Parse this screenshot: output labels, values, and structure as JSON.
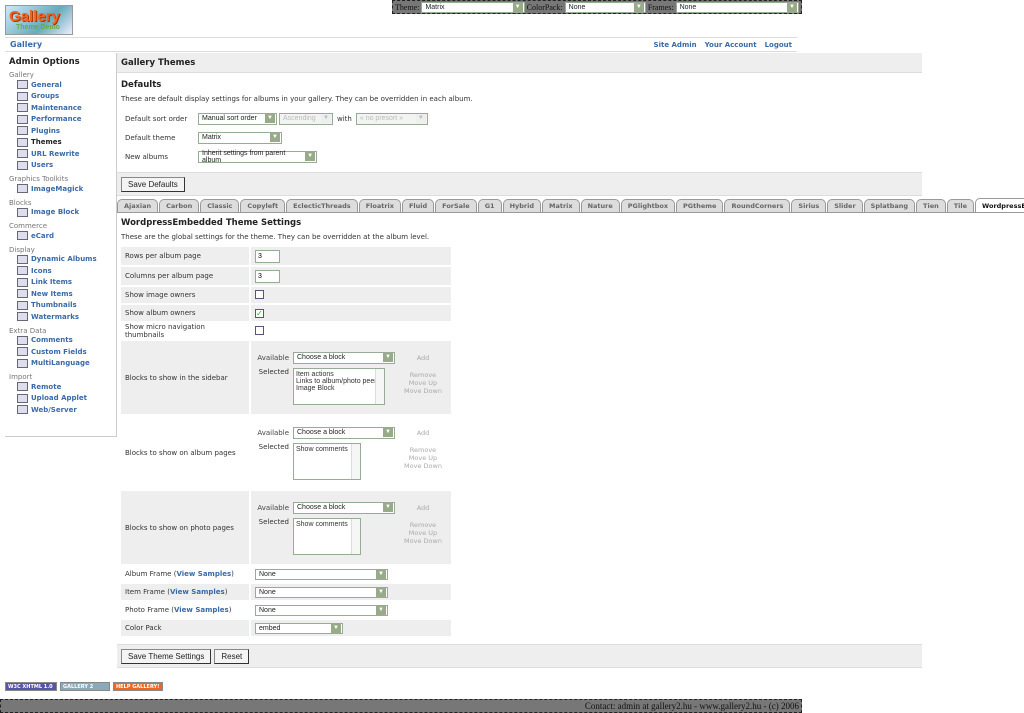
{
  "topbar": {
    "theme_label": "Theme:",
    "theme_value": "Matrix",
    "colorpack_label": "ColorPack:",
    "colorpack_value": "None",
    "frames_label": "Frames:",
    "frames_value": "None"
  },
  "logo": {
    "text": "Gallery",
    "sub": "Theme Demo"
  },
  "nav": {
    "breadcrumb": "Gallery",
    "links": [
      "Site Admin",
      "Your Account",
      "Logout"
    ]
  },
  "sidebar": {
    "title": "Admin Options",
    "groups": [
      {
        "name": "Gallery",
        "items": [
          "General",
          "Groups",
          "Maintenance",
          "Performance",
          "Plugins",
          "Themes",
          "URL Rewrite",
          "Users"
        ]
      },
      {
        "name": "Graphics Toolkits",
        "items": [
          "ImageMagick"
        ]
      },
      {
        "name": "Blocks",
        "items": [
          "Image Block"
        ]
      },
      {
        "name": "Commerce",
        "items": [
          "eCard"
        ]
      },
      {
        "name": "Display",
        "items": [
          "Dynamic Albums",
          "Icons",
          "Link Items",
          "New Items",
          "Thumbnails",
          "Watermarks"
        ]
      },
      {
        "name": "Extra Data",
        "items": [
          "Comments",
          "Custom Fields",
          "MultiLanguage"
        ]
      },
      {
        "name": "Import",
        "items": [
          "Remote",
          "Upload Applet",
          "Web/Server"
        ]
      }
    ],
    "current": "Themes"
  },
  "main": {
    "title": "Gallery Themes",
    "defaults": {
      "heading": "Defaults",
      "description": "These are default display settings for albums in your gallery. They can be overridden in each album.",
      "sort_label": "Default sort order",
      "sort_value": "Manual sort order",
      "direction_value": "Ascending",
      "with_label": "with",
      "presort_value": "« no presort »",
      "theme_label": "Default theme",
      "theme_value": "Matrix",
      "new_albums_label": "New albums",
      "new_albums_value": "Inherit settings from parent album",
      "save_label": "Save Defaults"
    },
    "tabs": [
      "Ajaxian",
      "Carbon",
      "Classic",
      "Copyleft",
      "EclecticThreads",
      "Floatrix",
      "Fluid",
      "ForSale",
      "G1",
      "Hybrid",
      "Matrix",
      "Nature",
      "PGlightbox",
      "PGtheme",
      "RoundCorners",
      "Sirius",
      "Slider",
      "Splatbang",
      "Tien",
      "Tile",
      "WordpressEmbedded"
    ],
    "active_tab": "WordpressEmbedded",
    "settings": {
      "heading": "WordpressEmbedded Theme Settings",
      "description": "These are the global settings for the theme. They can be overridden at the album level.",
      "rows_label": "Rows per album page",
      "rows_value": "3",
      "cols_label": "Columns per album page",
      "cols_value": "3",
      "owners_label": "Show image owners",
      "owners_checked": false,
      "album_owners_label": "Show album owners",
      "album_owners_checked": true,
      "micro_label": "Show micro navigation thumbnails",
      "micro_checked": false,
      "available_label": "Available",
      "selected_label": "Selected",
      "choose": "Choose a block",
      "add": "Add",
      "remove": "Remove",
      "move_up": "Move Up",
      "move_down": "Move Down",
      "sidebar_blocks_label": "Blocks to show in the sidebar",
      "sidebar_blocks": [
        "Item actions",
        "Links to album/photo peers",
        "Image Block"
      ],
      "album_blocks_label": "Blocks to show on album pages",
      "album_blocks": [
        "Show comments"
      ],
      "photo_blocks_label": "Blocks to show on photo pages",
      "photo_blocks": [
        "Show comments"
      ],
      "view_samples": "View Samples",
      "album_frame_label": "Album Frame",
      "album_frame_value": "None",
      "item_frame_label": "Item Frame",
      "item_frame_value": "None",
      "photo_frame_label": "Photo Frame",
      "photo_frame_value": "None",
      "colorpack_label": "Color Pack",
      "colorpack_value": "embed",
      "save_label": "Save Theme Settings",
      "reset_label": "Reset"
    }
  },
  "badges": [
    "W3C XHTML 1.0",
    "GALLERY 2",
    "HELP GALLERY!"
  ],
  "footer": "Contact: admin at gallery2.hu - www.gallery2.hu - (c) 2006"
}
